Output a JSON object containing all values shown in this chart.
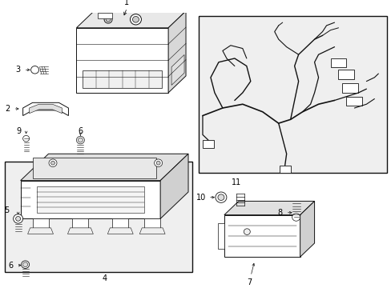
{
  "bg_color": "#ffffff",
  "box_fill": "#eeeeee",
  "line_color": "#111111",
  "label_color": "#000000",
  "fig_w": 4.89,
  "fig_h": 3.6,
  "dpi": 100
}
